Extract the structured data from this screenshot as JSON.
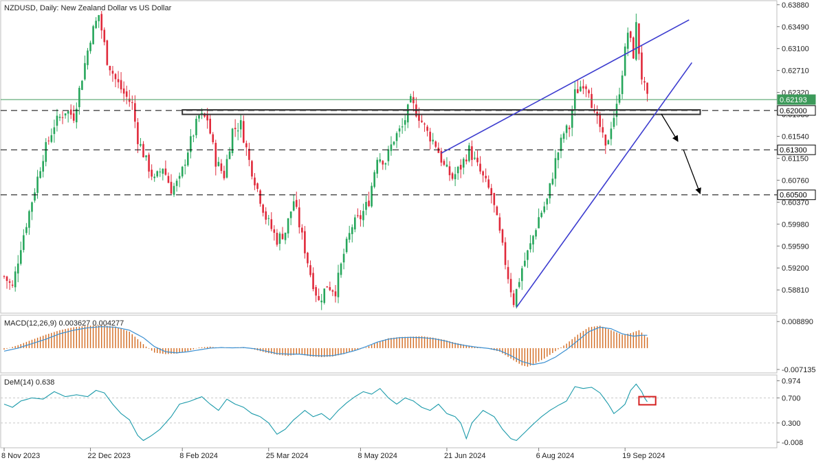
{
  "header": {
    "symbol": "NZDUSD",
    "timeframe": "Daily",
    "description": "New Zealand Dollar vs US Dollar",
    "title": "NZDUSD, Daily:  New Zealand Dollar vs US Dollar"
  },
  "chart_data": [
    {
      "type": "candlestick",
      "title": "NZDUSD, Daily:  New Zealand Dollar vs US Dollar",
      "y_ticks": [
        "0.63880",
        "0.63490",
        "0.63100",
        "0.62710",
        "0.62320",
        "0.61930",
        "0.61540",
        "0.61150",
        "0.60760",
        "0.60370",
        "0.59980",
        "0.59590",
        "0.59200",
        "0.58810"
      ],
      "ylim": [
        0.5847,
        0.6389
      ],
      "x_tick_labels": [
        "8 Nov 2023",
        "22 Dec 2023",
        "8 Feb 2024",
        "25 Mar 2024",
        "8 May 2024",
        "21 Jun 2024",
        "6 Aug 2024",
        "19 Sep 2024"
      ],
      "x_tick_bar_index": [
        0,
        31,
        64,
        95,
        128,
        159,
        192,
        223
      ],
      "bars_count": 232,
      "close_path": [
        [
          0,
          0.5905
        ],
        [
          3,
          0.5885
        ],
        [
          6,
          0.596
        ],
        [
          10,
          0.604
        ],
        [
          14,
          0.612
        ],
        [
          18,
          0.6175
        ],
        [
          22,
          0.62
        ],
        [
          25,
          0.619
        ],
        [
          28,
          0.626
        ],
        [
          31,
          0.633
        ],
        [
          34,
          0.637
        ],
        [
          37,
          0.629
        ],
        [
          40,
          0.6255
        ],
        [
          43,
          0.623
        ],
        [
          46,
          0.621
        ],
        [
          48,
          0.615
        ],
        [
          51,
          0.611
        ],
        [
          54,
          0.6075
        ],
        [
          57,
          0.61
        ],
        [
          60,
          0.606
        ],
        [
          63,
          0.6075
        ],
        [
          66,
          0.613
        ],
        [
          70,
          0.619
        ],
        [
          73,
          0.6185
        ],
        [
          76,
          0.611
        ],
        [
          79,
          0.6085
        ],
        [
          82,
          0.6165
        ],
        [
          85,
          0.6175
        ],
        [
          88,
          0.611
        ],
        [
          91,
          0.606
        ],
        [
          94,
          0.601
        ],
        [
          98,
          0.597
        ],
        [
          101,
          0.5985
        ],
        [
          104,
          0.604
        ],
        [
          107,
          0.5975
        ],
        [
          110,
          0.591
        ],
        [
          113,
          0.586
        ],
        [
          116,
          0.589
        ],
        [
          119,
          0.588
        ],
        [
          122,
          0.5945
        ],
        [
          125,
          0.5995
        ],
        [
          128,
          0.601
        ],
        [
          131,
          0.604
        ],
        [
          134,
          0.612
        ],
        [
          137,
          0.611
        ],
        [
          140,
          0.615
        ],
        [
          143,
          0.617
        ],
        [
          146,
          0.6215
        ],
        [
          149,
          0.619
        ],
        [
          152,
          0.616
        ],
        [
          155,
          0.614
        ],
        [
          158,
          0.61
        ],
        [
          161,
          0.608
        ],
        [
          164,
          0.61
        ],
        [
          167,
          0.613
        ],
        [
          170,
          0.61
        ],
        [
          172,
          0.608
        ],
        [
          175,
          0.605
        ],
        [
          178,
          0.598
        ],
        [
          181,
          0.5905
        ],
        [
          183,
          0.586
        ],
        [
          186,
          0.592
        ],
        [
          189,
          0.596
        ],
        [
          192,
          0.601
        ],
        [
          195,
          0.604
        ],
        [
          198,
          0.611
        ],
        [
          201,
          0.616
        ],
        [
          203,
          0.617
        ],
        [
          205,
          0.623
        ],
        [
          208,
          0.625
        ],
        [
          210,
          0.624
        ],
        [
          212,
          0.619
        ],
        [
          214,
          0.617
        ],
        [
          216,
          0.613
        ],
        [
          218,
          0.6175
        ],
        [
          220,
          0.6205
        ],
        [
          222,
          0.627
        ],
        [
          224,
          0.634
        ],
        [
          226,
          0.63
        ],
        [
          227,
          0.635
        ],
        [
          229,
          0.626
        ],
        [
          231,
          0.6219
        ]
      ],
      "horizontal_levels": [
        {
          "value": 0.62193,
          "label": "0.62193",
          "style": "solid",
          "color": "#3c9a5a"
        },
        {
          "value": 0.62,
          "label": "0.62000",
          "style": "dashed",
          "color": "#000000"
        },
        {
          "value": 0.613,
          "label": "0.61300",
          "style": "dashed",
          "color": "#000000"
        },
        {
          "value": 0.605,
          "label": "0.60500",
          "style": "dashed",
          "color": "#000000"
        }
      ],
      "support_zone": {
        "from_bar": 64,
        "to_bar": 250,
        "low": 0.6193,
        "high": 0.6201
      },
      "wedge_lines": [
        {
          "from": [
            184,
            0.585
          ],
          "to": [
            247,
            0.6285
          ]
        },
        {
          "from": [
            157,
            0.6124
          ],
          "to": [
            246,
            0.6361
          ]
        }
      ],
      "projection_arrows": [
        {
          "from": [
            236,
            0.6194
          ],
          "to": [
            242,
            0.6145
          ]
        },
        {
          "from": [
            244,
            0.613
          ],
          "to": [
            250,
            0.6052
          ]
        }
      ],
      "colors": {
        "up": "#26a65b",
        "down": "#e0293a",
        "line": "#3c3ccf"
      }
    },
    {
      "type": "macd",
      "label": "MACD(12,26,9) 0.003627 0.004277",
      "y_ticks": [
        "0.008890",
        "-0.007135"
      ],
      "ylim": [
        -0.0076,
        0.0094
      ],
      "histogram_path": [
        [
          0,
          -0.0005
        ],
        [
          5,
          0.001
        ],
        [
          10,
          0.0028
        ],
        [
          15,
          0.0045
        ],
        [
          20,
          0.006
        ],
        [
          25,
          0.007
        ],
        [
          30,
          0.0075
        ],
        [
          35,
          0.0076
        ],
        [
          40,
          0.0072
        ],
        [
          45,
          0.0055
        ],
        [
          48,
          0.003
        ],
        [
          51,
          0.0005
        ],
        [
          54,
          -0.0015
        ],
        [
          58,
          -0.002
        ],
        [
          62,
          -0.0018
        ],
        [
          66,
          -0.001
        ],
        [
          70,
          0.0002
        ],
        [
          74,
          0.0005
        ],
        [
          78,
          0.0
        ],
        [
          82,
          0.0002
        ],
        [
          86,
          0.0003
        ],
        [
          90,
          -0.0005
        ],
        [
          94,
          -0.0015
        ],
        [
          98,
          -0.0022
        ],
        [
          102,
          -0.0026
        ],
        [
          106,
          -0.002
        ],
        [
          110,
          -0.0028
        ],
        [
          114,
          -0.003
        ],
        [
          118,
          -0.0028
        ],
        [
          122,
          -0.002
        ],
        [
          126,
          -0.0008
        ],
        [
          130,
          0.0002
        ],
        [
          134,
          0.002
        ],
        [
          138,
          0.0033
        ],
        [
          142,
          0.0037
        ],
        [
          146,
          0.0038
        ],
        [
          150,
          0.004
        ],
        [
          154,
          0.0035
        ],
        [
          158,
          0.0028
        ],
        [
          162,
          0.0018
        ],
        [
          166,
          0.001
        ],
        [
          170,
          0.0004
        ],
        [
          174,
          -0.0002
        ],
        [
          178,
          -0.0012
        ],
        [
          182,
          -0.0035
        ],
        [
          186,
          -0.0058
        ],
        [
          188,
          -0.0062
        ],
        [
          190,
          -0.0055
        ],
        [
          194,
          -0.0035
        ],
        [
          198,
          -0.001
        ],
        [
          202,
          0.0015
        ],
        [
          206,
          0.0045
        ],
        [
          210,
          0.007
        ],
        [
          214,
          0.0075
        ],
        [
          218,
          0.006
        ],
        [
          222,
          0.0045
        ],
        [
          225,
          0.005
        ],
        [
          228,
          0.006
        ],
        [
          231,
          0.0036
        ]
      ],
      "signal_path": [
        [
          0,
          -0.001
        ],
        [
          5,
          0.0
        ],
        [
          10,
          0.0015
        ],
        [
          15,
          0.003
        ],
        [
          20,
          0.0048
        ],
        [
          25,
          0.006
        ],
        [
          30,
          0.0068
        ],
        [
          35,
          0.0072
        ],
        [
          40,
          0.007
        ],
        [
          45,
          0.006
        ],
        [
          50,
          0.0035
        ],
        [
          54,
          0.0005
        ],
        [
          58,
          -0.0012
        ],
        [
          62,
          -0.0016
        ],
        [
          66,
          -0.0012
        ],
        [
          70,
          -0.0006
        ],
        [
          74,
          0.0
        ],
        [
          78,
          0.0002
        ],
        [
          82,
          0.0001
        ],
        [
          86,
          0.0002
        ],
        [
          90,
          -0.0002
        ],
        [
          94,
          -0.001
        ],
        [
          98,
          -0.0018
        ],
        [
          102,
          -0.002
        ],
        [
          106,
          -0.002
        ],
        [
          110,
          -0.0024
        ],
        [
          114,
          -0.0026
        ],
        [
          118,
          -0.0025
        ],
        [
          122,
          -0.0018
        ],
        [
          126,
          -0.0008
        ],
        [
          130,
          0.0005
        ],
        [
          134,
          0.002
        ],
        [
          138,
          0.003
        ],
        [
          142,
          0.0035
        ],
        [
          146,
          0.0036
        ],
        [
          150,
          0.0035
        ],
        [
          154,
          0.0032
        ],
        [
          158,
          0.0025
        ],
        [
          162,
          0.0015
        ],
        [
          166,
          0.0008
        ],
        [
          170,
          0.0003
        ],
        [
          174,
          -0.0001
        ],
        [
          178,
          -0.0008
        ],
        [
          182,
          -0.0025
        ],
        [
          186,
          -0.0045
        ],
        [
          190,
          -0.0055
        ],
        [
          194,
          -0.0048
        ],
        [
          198,
          -0.003
        ],
        [
          202,
          -0.0005
        ],
        [
          206,
          0.0025
        ],
        [
          210,
          0.0055
        ],
        [
          214,
          0.007
        ],
        [
          218,
          0.0065
        ],
        [
          222,
          0.0048
        ],
        [
          226,
          0.004
        ],
        [
          229,
          0.0043
        ],
        [
          231,
          0.0043
        ]
      ],
      "colors": {
        "histogram": "#d2691e",
        "signal": "#3a8fd1"
      }
    },
    {
      "type": "line",
      "label": "DeM(14) 0.638",
      "y_ticks": [
        "0.974",
        "0.700",
        "0.300",
        "-0.008"
      ],
      "ylim": [
        -0.03,
        1.0
      ],
      "reference_levels": [
        0.7,
        0.3
      ],
      "series_path": [
        [
          0,
          0.6
        ],
        [
          3,
          0.55
        ],
        [
          6,
          0.65
        ],
        [
          10,
          0.7
        ],
        [
          14,
          0.68
        ],
        [
          18,
          0.8
        ],
        [
          22,
          0.72
        ],
        [
          26,
          0.75
        ],
        [
          30,
          0.72
        ],
        [
          33,
          0.82
        ],
        [
          36,
          0.78
        ],
        [
          39,
          0.6
        ],
        [
          42,
          0.45
        ],
        [
          45,
          0.35
        ],
        [
          48,
          0.1
        ],
        [
          50,
          0.02
        ],
        [
          53,
          0.1
        ],
        [
          56,
          0.2
        ],
        [
          60,
          0.4
        ],
        [
          63,
          0.6
        ],
        [
          67,
          0.65
        ],
        [
          71,
          0.72
        ],
        [
          74,
          0.6
        ],
        [
          77,
          0.5
        ],
        [
          80,
          0.68
        ],
        [
          83,
          0.6
        ],
        [
          86,
          0.55
        ],
        [
          89,
          0.45
        ],
        [
          92,
          0.4
        ],
        [
          95,
          0.3
        ],
        [
          98,
          0.12
        ],
        [
          101,
          0.2
        ],
        [
          104,
          0.35
        ],
        [
          108,
          0.5
        ],
        [
          111,
          0.4
        ],
        [
          114,
          0.45
        ],
        [
          117,
          0.35
        ],
        [
          120,
          0.5
        ],
        [
          123,
          0.62
        ],
        [
          126,
          0.72
        ],
        [
          129,
          0.8
        ],
        [
          132,
          0.76
        ],
        [
          135,
          0.85
        ],
        [
          138,
          0.7
        ],
        [
          141,
          0.6
        ],
        [
          144,
          0.7
        ],
        [
          147,
          0.65
        ],
        [
          150,
          0.55
        ],
        [
          153,
          0.5
        ],
        [
          156,
          0.6
        ],
        [
          159,
          0.45
        ],
        [
          162,
          0.4
        ],
        [
          164,
          0.3
        ],
        [
          166,
          0.05
        ],
        [
          168,
          0.3
        ],
        [
          172,
          0.5
        ],
        [
          176,
          0.4
        ],
        [
          179,
          0.2
        ],
        [
          182,
          0.05
        ],
        [
          184,
          0.02
        ],
        [
          187,
          0.15
        ],
        [
          190,
          0.28
        ],
        [
          193,
          0.4
        ],
        [
          196,
          0.5
        ],
        [
          199,
          0.58
        ],
        [
          202,
          0.65
        ],
        [
          205,
          0.88
        ],
        [
          208,
          0.85
        ],
        [
          211,
          0.87
        ],
        [
          214,
          0.78
        ],
        [
          217,
          0.6
        ],
        [
          219,
          0.45
        ],
        [
          221,
          0.52
        ],
        [
          223,
          0.6
        ],
        [
          225,
          0.82
        ],
        [
          227,
          0.92
        ],
        [
          229,
          0.8
        ],
        [
          230,
          0.7
        ],
        [
          231,
          0.638
        ]
      ],
      "signal_box": {
        "from_bar": 228,
        "to_bar": 234,
        "low": 0.59,
        "high": 0.72
      },
      "colors": {
        "line": "#1b9aaa",
        "box": "#d42020"
      }
    }
  ]
}
